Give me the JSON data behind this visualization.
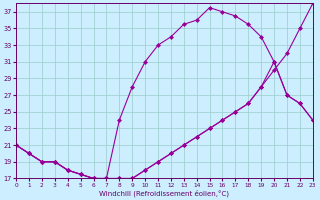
{
  "xlabel": "Windchill (Refroidissement éolien,°C)",
  "background_color": "#cceeff",
  "grid_color": "#99cccc",
  "line_color": "#990099",
  "xlim": [
    0,
    23
  ],
  "ylim": [
    17,
    38
  ],
  "yticks": [
    17,
    19,
    21,
    23,
    25,
    27,
    29,
    31,
    33,
    35,
    37
  ],
  "xticks": [
    0,
    1,
    2,
    3,
    4,
    5,
    6,
    7,
    8,
    9,
    10,
    11,
    12,
    13,
    14,
    15,
    16,
    17,
    18,
    19,
    20,
    21,
    22,
    23
  ],
  "xs_bot": [
    0,
    1,
    2,
    3,
    4,
    5,
    6,
    7,
    8,
    9,
    10,
    11,
    12,
    13,
    14,
    15,
    16,
    17,
    18,
    19,
    20,
    21,
    22,
    23
  ],
  "ys_bot": [
    21,
    20,
    19,
    19,
    18,
    17.5,
    17,
    17,
    17,
    17,
    18,
    19,
    20,
    21,
    22,
    23,
    24,
    25,
    26,
    28,
    30,
    32,
    35,
    38
  ],
  "xs_mid": [
    0,
    1,
    2,
    3,
    4,
    5,
    6,
    7,
    8,
    9,
    10,
    11,
    12,
    13,
    14,
    15,
    16,
    17,
    18,
    19,
    20,
    21,
    22,
    23
  ],
  "ys_mid": [
    21,
    20,
    19,
    19,
    18,
    17.5,
    17,
    17,
    17,
    17,
    18,
    19,
    20,
    21,
    22,
    23,
    24,
    25,
    26,
    28,
    31,
    27,
    26,
    24
  ],
  "xs_top": [
    0,
    1,
    2,
    3,
    4,
    5,
    6,
    7,
    8,
    9,
    10,
    11,
    12,
    13,
    14,
    15,
    16,
    17,
    18,
    19,
    20,
    21,
    22,
    23
  ],
  "ys_top": [
    21,
    20,
    19,
    19,
    18,
    17.5,
    17,
    17,
    24,
    28,
    31,
    33,
    34,
    35.5,
    36,
    37.5,
    37,
    36.5,
    35.5,
    34,
    31,
    27,
    26,
    24
  ]
}
